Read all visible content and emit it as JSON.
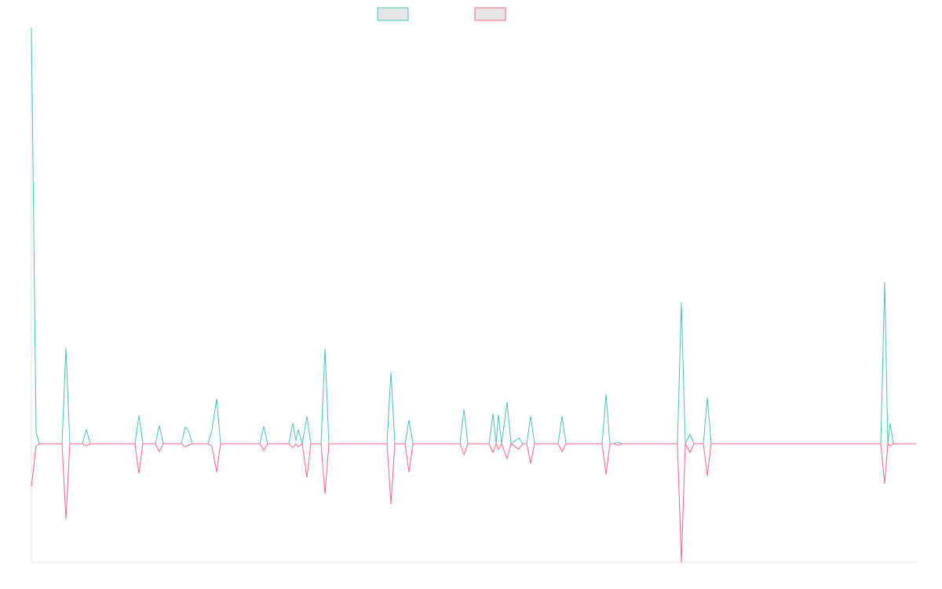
{
  "chart_data": {
    "type": "line",
    "x": [
      0,
      6,
      10,
      39,
      44,
      49,
      65,
      70,
      75,
      132,
      137,
      142,
      158,
      163,
      168,
      191,
      196,
      200,
      205,
      225,
      230,
      236,
      241,
      291,
      296,
      301,
      328,
      333,
      337,
      340,
      345,
      351,
      356,
      369,
      374,
      379,
      453,
      458,
      463,
      476,
      481,
      486,
      546,
      551,
      556,
      583,
      588,
      592,
      595,
      599,
      606,
      611,
      621,
      626,
      631,
      636,
      641,
      671,
      676,
      681,
      727,
      732,
      737,
      742,
      747,
      752,
      823,
      828,
      833,
      839,
      844,
      856,
      861,
      866,
      1082,
      1087,
      1091,
      1094,
      1098,
      1127
    ],
    "series": [
      {
        "color": "#4bc0c0",
        "values": [
          53,
          1.5,
          0,
          0,
          12.2,
          0,
          0,
          1.8,
          0,
          0,
          3.6,
          0,
          0,
          2.3,
          0,
          0,
          2.1,
          1.7,
          0,
          0,
          1.7,
          5.7,
          0,
          0,
          2.2,
          0,
          0,
          2.6,
          0.4,
          1.8,
          0,
          3.5,
          0,
          0,
          12.1,
          0,
          0,
          9.1,
          0,
          0,
          3,
          0,
          0,
          4.4,
          0,
          0,
          3.8,
          0,
          3.7,
          0,
          5.3,
          0,
          0.7,
          0,
          0,
          3.5,
          0,
          0,
          3.5,
          0,
          0,
          6.3,
          0,
          0,
          0.2,
          0,
          0,
          18,
          0,
          1.2,
          0,
          0,
          5.9,
          0,
          0,
          20.6,
          0,
          2.6,
          0,
          0
        ]
      },
      {
        "color": "#ff6384",
        "values": [
          -5.5,
          -0.3,
          0,
          0,
          -9.6,
          0,
          0,
          -0.3,
          0,
          0,
          -3.8,
          0,
          0,
          -1,
          0,
          0,
          -0.4,
          -0.2,
          0,
          0,
          -0.3,
          -3.6,
          0,
          0,
          -0.8,
          0,
          0,
          -0.5,
          0,
          -0.4,
          0,
          -4.3,
          0,
          0,
          -6.4,
          0,
          0,
          -7.7,
          0,
          0,
          -3.6,
          0,
          0,
          -1.4,
          0,
          0,
          -1.1,
          0,
          -0.7,
          0,
          -1.9,
          0,
          -0.7,
          0,
          0,
          -2.5,
          0,
          0,
          -1,
          0,
          0,
          -3.9,
          0,
          0,
          -0.2,
          0,
          0,
          -15.1,
          0,
          -1.1,
          0,
          0,
          -4.1,
          0,
          0,
          -5.1,
          0,
          -0.3,
          0,
          0
        ]
      }
    ],
    "xlim": [
      0,
      1127
    ],
    "ylim": [
      -15.1,
      53
    ]
  }
}
